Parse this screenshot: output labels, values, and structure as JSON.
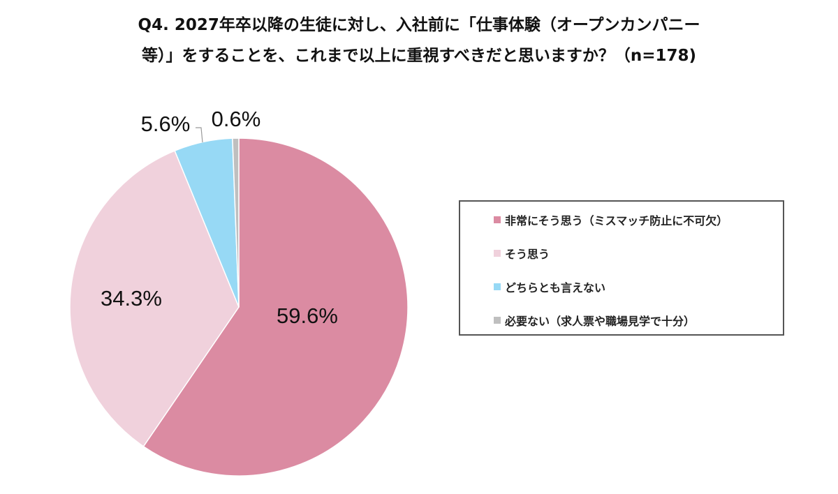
{
  "chart_data": {
    "type": "pie",
    "title_line1": "Q4. 2027年卒以降の生徒に対し、入社前に「仕事体験（オープンカンパニー",
    "title_line2": "等）」をすることを、これまで以上に重視すべきだと思いますか？（n=178)",
    "start": "top",
    "direction": "clockwise",
    "slices": [
      {
        "label": "非常にそう思う（ミスマッチ防止に不可欠）",
        "value": 59.6,
        "display": "59.6%",
        "color": "#db8ba2"
      },
      {
        "label": "そう思う",
        "value": 34.3,
        "display": "34.3%",
        "color": "#f0d1dc"
      },
      {
        "label": "どちらとも言えない",
        "value": 5.6,
        "display": "5.6%",
        "color": "#97d9f5"
      },
      {
        "label": "必要ない（求人票や職場見学で十分）",
        "value": 0.6,
        "display": "0.6%",
        "color": "#bfbfbf"
      }
    ],
    "legend_placement": "right"
  }
}
